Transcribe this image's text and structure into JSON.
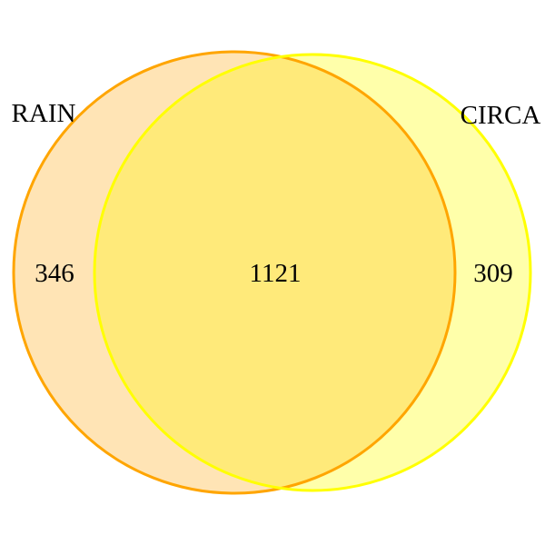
{
  "venn": {
    "sets": [
      {
        "name": "RAIN",
        "only_count": "346",
        "fill": "#FFE4B5",
        "stroke": "#FFA500"
      },
      {
        "name": "CIRCA",
        "only_count": "309",
        "fill": "#FFFFAA",
        "stroke": "#FFFF00"
      }
    ],
    "intersection": {
      "count": "1121",
      "fill": "#FFEA7A"
    }
  }
}
